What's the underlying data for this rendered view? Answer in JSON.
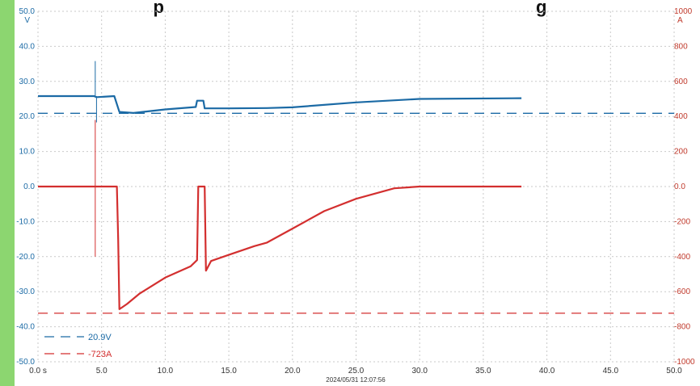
{
  "title": "p",
  "title_right": "g",
  "timestamp": "2024/05/31 12:07:56",
  "chart_data": {
    "type": "line",
    "x_ticks": [
      "0.0 s",
      "5.0",
      "10.0",
      "15.0",
      "20.0",
      "25.0",
      "30.0",
      "35.0",
      "40.0",
      "45.0",
      "50.0"
    ],
    "xlim": [
      0,
      50
    ],
    "y_left": {
      "unit": "V",
      "ylim": [
        -50,
        50
      ],
      "ticks": [
        "50.0",
        "40.0",
        "30.0",
        "20.0",
        "10.0",
        "0.0",
        "-10.0",
        "-20.0",
        "-30.0",
        "-40.0",
        "-50.0"
      ]
    },
    "y_right": {
      "unit": "A",
      "ylim": [
        -1000,
        1000
      ],
      "ticks": [
        "1000",
        "800",
        "600",
        "400",
        "200",
        "0.0",
        "-200",
        "-400",
        "-600",
        "-800",
        "-1000"
      ]
    },
    "grid": true,
    "colors": {
      "voltage": "#1b6aa5",
      "current": "#d32f2f"
    },
    "series": [
      {
        "axis": "left",
        "x": [
          0,
          4.4,
          4.6,
          6.0,
          6.4,
          7.5,
          10,
          12.4,
          12.5,
          13.0,
          13.1,
          15,
          18,
          20,
          25,
          30,
          38
        ],
        "y": [
          25.8,
          25.8,
          25.5,
          25.8,
          21.3,
          21.0,
          22,
          22.7,
          24.5,
          24.5,
          22.3,
          22.3,
          22.4,
          22.6,
          24,
          25,
          25.2
        ]
      },
      {
        "axis": "right",
        "x": [
          0,
          6.2,
          6.3,
          6.4,
          7,
          8,
          10,
          12,
          12.5,
          12.6,
          13.1,
          13.2,
          13.6,
          15,
          17,
          18,
          20,
          22.5,
          25,
          28,
          30,
          38
        ],
        "y": [
          0,
          0,
          -300,
          -700,
          -670,
          -610,
          -520,
          -455,
          -420,
          0,
          0,
          -480,
          -425,
          -390,
          -340,
          -320,
          -240,
          -140,
          -70,
          -10,
          0,
          0
        ]
      }
    ],
    "reference_lines": [
      {
        "axis": "left",
        "value": 20.9,
        "label": "20.9V"
      },
      {
        "axis": "right",
        "value": -723,
        "label": "-723A"
      }
    ],
    "spikes": [
      {
        "axis": "left",
        "x": 4.5,
        "y": 35.8
      },
      {
        "axis": "left",
        "x": 4.6,
        "y": 18.3
      },
      {
        "axis": "right",
        "x": 4.5,
        "y": 380
      },
      {
        "axis": "right",
        "x": 4.5,
        "y": -400
      }
    ]
  }
}
